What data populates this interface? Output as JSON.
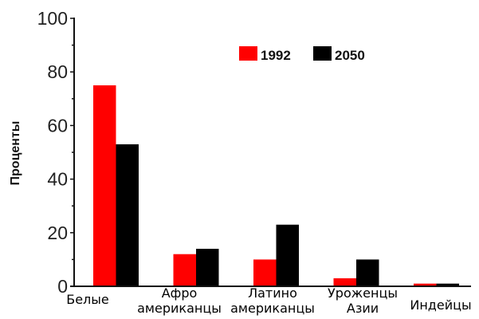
{
  "chart_data": {
    "type": "bar",
    "title": "",
    "xlabel": "",
    "ylabel": "Проценты",
    "ylim": [
      0,
      100
    ],
    "yticks": [
      "0",
      "20",
      "40",
      "60",
      "80",
      "100"
    ],
    "grid": false,
    "legend_placement": "top-right",
    "categories": [
      [
        "Белые"
      ],
      [
        "Афро",
        "американцы"
      ],
      [
        "Латино",
        "американцы"
      ],
      [
        "Уроженцы",
        "Азии"
      ],
      [
        "Индейцы"
      ]
    ],
    "series": [
      {
        "name": "1992",
        "color": "#ff0000",
        "values": [
          75,
          12,
          10,
          3,
          1
        ]
      },
      {
        "name": "2050",
        "color": "#000000",
        "values": [
          53,
          14,
          23,
          10,
          1
        ]
      }
    ]
  }
}
